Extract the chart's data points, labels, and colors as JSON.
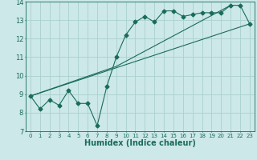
{
  "title": "",
  "xlabel": "Humidex (Indice chaleur)",
  "ylabel": "",
  "xlim": [
    -0.5,
    23.5
  ],
  "ylim": [
    7,
    14
  ],
  "background_color": "#cce8e8",
  "grid_color": "#aad0d0",
  "line_color": "#1a6b5a",
  "line1_x": [
    0,
    1,
    2,
    3,
    4,
    5,
    6,
    7,
    8,
    9,
    10,
    11,
    12,
    13,
    14,
    15,
    16,
    17,
    18,
    19,
    20,
    21,
    22,
    23
  ],
  "line1_y": [
    8.9,
    8.2,
    8.7,
    8.4,
    9.2,
    8.5,
    8.5,
    7.3,
    9.4,
    11.0,
    12.2,
    12.9,
    13.2,
    12.9,
    13.5,
    13.5,
    13.2,
    13.3,
    13.4,
    13.4,
    13.4,
    13.8,
    13.8,
    12.8
  ],
  "line2_x": [
    0,
    23
  ],
  "line2_y": [
    8.9,
    12.8
  ],
  "line3_x": [
    0,
    9,
    21
  ],
  "line3_y": [
    8.9,
    10.5,
    13.8
  ],
  "xtick_fontsize": 5,
  "ytick_fontsize": 6,
  "xlabel_fontsize": 7,
  "marker_size": 2.5
}
